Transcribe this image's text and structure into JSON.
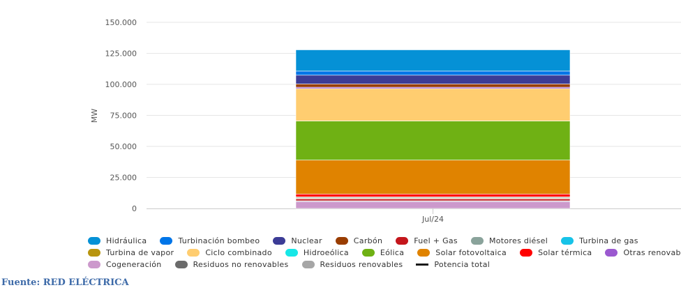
{
  "chart_data": {
    "type": "bar",
    "stacked": true,
    "categories": [
      "Jul/24"
    ],
    "ylabel": "MW",
    "ylim": [
      0,
      150000
    ],
    "yticks": [
      0,
      25000,
      50000,
      75000,
      100000,
      125000,
      150000
    ],
    "ytick_labels": [
      "0",
      "25.000",
      "50.000",
      "75.000",
      "100.000",
      "125.000",
      "150.000"
    ],
    "grid": true,
    "legend_position": "bottom",
    "series": [
      {
        "name": "Cogeneración",
        "color": "#cc99cc",
        "values": [
          5500
        ]
      },
      {
        "name": "Residuos no renovables",
        "color": "#6b6b6b",
        "values": [
          500
        ]
      },
      {
        "name": "Residuos renovables",
        "color": "#a6a6a6",
        "values": [
          200
        ]
      },
      {
        "name": "Fuel + Gas",
        "color": "#c4161c",
        "values": [
          1500
        ]
      },
      {
        "name": "Turbina de vapor",
        "color": "#b8950f",
        "values": [
          500
        ]
      },
      {
        "name": "Motores diésel",
        "color": "#8aa39b",
        "values": [
          800
        ]
      },
      {
        "name": "Turbina de gas",
        "color": "#17c3e8",
        "values": [
          300
        ]
      },
      {
        "name": "Solar térmica",
        "color": "#ff0000",
        "values": [
          2300
        ]
      },
      {
        "name": "Solar fotovoltaica",
        "color": "#e08300",
        "values": [
          27400
        ]
      },
      {
        "name": "Eólica",
        "color": "#6fb114",
        "values": [
          31500
        ]
      },
      {
        "name": "Hidroeólica",
        "color": "#16e7e7",
        "values": [
          10
        ]
      },
      {
        "name": "Ciclo combinado",
        "color": "#ffcd70",
        "values": [
          26100
        ]
      },
      {
        "name": "Otras renovables",
        "color": "#9b59d0",
        "values": [
          1100
        ]
      },
      {
        "name": "Carbón",
        "color": "#993d00",
        "values": [
          2600
        ]
      },
      {
        "name": "Nuclear",
        "color": "#3c3c96",
        "values": [
          7100
        ]
      },
      {
        "name": "Turbinación bombeo",
        "color": "#0075e8",
        "values": [
          3300
        ]
      },
      {
        "name": "Hidráulica",
        "color": "#0591d6",
        "values": [
          17100
        ]
      }
    ],
    "legend": [
      [
        {
          "name": "Hidráulica",
          "color": "#0591d6"
        },
        {
          "name": "Turbinación bombeo",
          "color": "#0075e8"
        },
        {
          "name": "Nuclear",
          "color": "#3c3c96"
        },
        {
          "name": "Carbón",
          "color": "#993d00"
        },
        {
          "name": "Fuel + Gas",
          "color": "#c4161c"
        },
        {
          "name": "Motores diésel",
          "color": "#8aa39b"
        },
        {
          "name": "Turbina de gas",
          "color": "#17c3e8"
        }
      ],
      [
        {
          "name": "Turbina de vapor",
          "color": "#b8950f"
        },
        {
          "name": "Ciclo combinado",
          "color": "#ffcd70"
        },
        {
          "name": "Hidroeólica",
          "color": "#16e7e7"
        },
        {
          "name": "Eólica",
          "color": "#6fb114"
        },
        {
          "name": "Solar fotovoltaica",
          "color": "#e08300"
        },
        {
          "name": "Solar térmica",
          "color": "#ff0000"
        },
        {
          "name": "Otras renovables",
          "color": "#9b59d0"
        }
      ],
      [
        {
          "name": "Cogeneración",
          "color": "#cc99cc"
        },
        {
          "name": "Residuos no renovables",
          "color": "#6b6b6b"
        },
        {
          "name": "Residuos renovables",
          "color": "#a6a6a6"
        },
        {
          "name": "Potencia total",
          "color": "#1a1a1a",
          "line": true
        }
      ]
    ]
  },
  "source": "Fuente: RED ELÉCTRICA"
}
